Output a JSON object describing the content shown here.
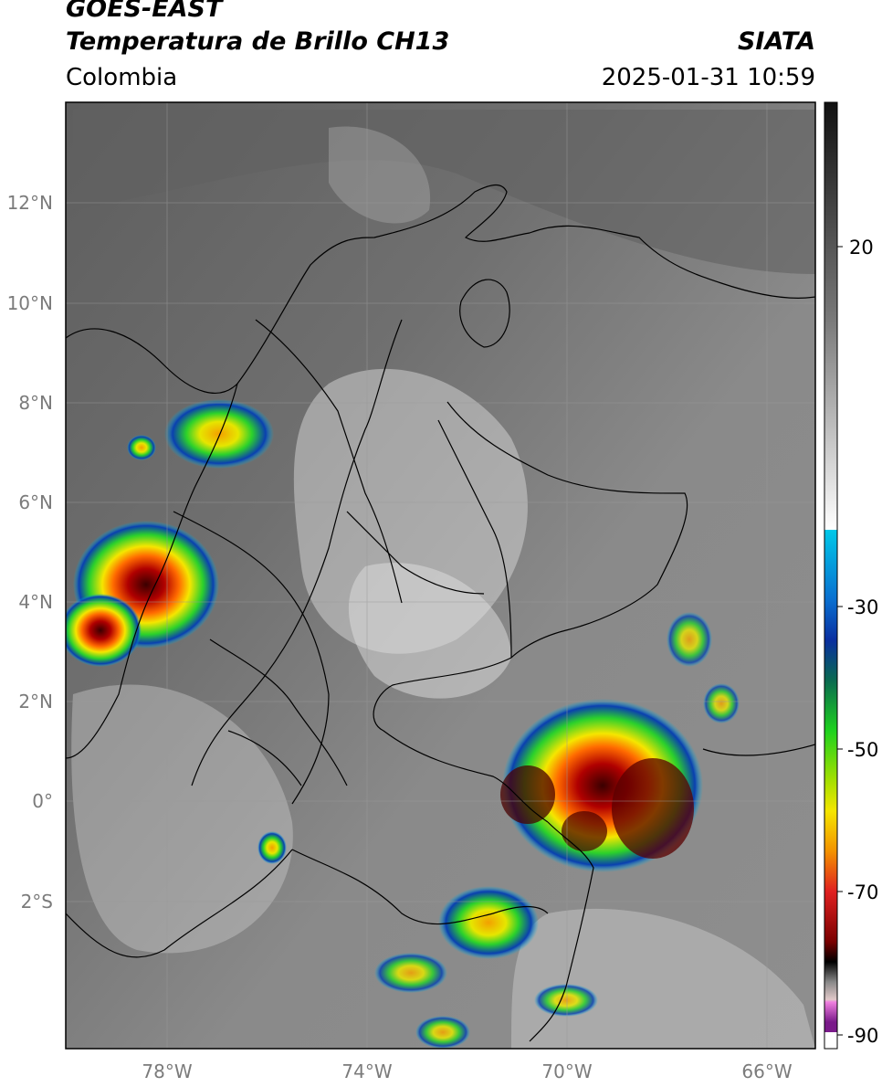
{
  "header": {
    "satellite": "GOES-EAST",
    "product": "Temperatura de Brillo CH13",
    "region": "Colombia",
    "agency": "SIATA",
    "datetime": "2025-01-31 10:59"
  },
  "map": {
    "lat_labels": [
      "12°N",
      "10°N",
      "8°N",
      "6°N",
      "4°N",
      "2°N",
      "0°",
      "2°S"
    ],
    "lon_labels": [
      "78°W",
      "74°W",
      "70°W",
      "66°W"
    ]
  },
  "colorbar": {
    "tick_labels": [
      "20",
      "-30",
      "-50",
      "-70",
      "-90"
    ],
    "colors": {
      "warm_gray_top": "#1a1a1a",
      "cold_cyan": "#00b5e0",
      "blue": "#0a2fa0",
      "green": "#1ed21e",
      "yellow": "#f5e600",
      "orange": "#f39200",
      "red": "#d21e1e",
      "dark_red": "#5a0000",
      "magenta": "#d04fc8",
      "purple": "#6b1a8a"
    }
  }
}
